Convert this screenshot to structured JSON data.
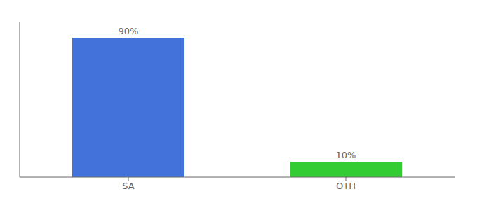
{
  "chart_data": {
    "type": "bar",
    "categories": [
      "SA",
      "OTH"
    ],
    "values": [
      90,
      10
    ],
    "value_labels": [
      "90%",
      "10%"
    ],
    "data_labels": true,
    "colors": [
      "#4472db",
      "#33cc33"
    ],
    "ylim": [
      0,
      100
    ],
    "tick_labels": "x",
    "grid": false
  }
}
